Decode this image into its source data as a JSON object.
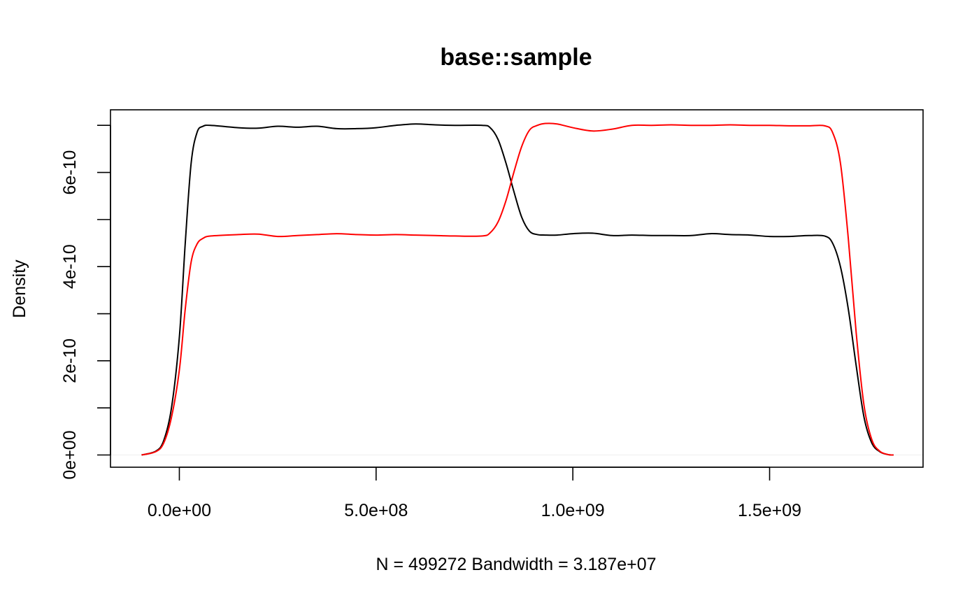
{
  "chart_data": {
    "type": "line",
    "title": "base::sample",
    "xlabel": "N = 499272   Bandwidth = 3.187e+07",
    "ylabel": "Density",
    "xlim": [
      -175000000,
      1890000000
    ],
    "ylim": [
      -2.6e-11,
      7.33e-10
    ],
    "x_ticks": [
      {
        "value": 0,
        "label": "0.0e+00"
      },
      {
        "value": 500000000,
        "label": "5.0e+08"
      },
      {
        "value": 1000000000,
        "label": "1.0e+09"
      },
      {
        "value": 1500000000,
        "label": "1.5e+09"
      }
    ],
    "y_ticks": [
      {
        "value": 0,
        "label": "0e+00"
      },
      {
        "value": 1e-10,
        "label": ""
      },
      {
        "value": 2e-10,
        "label": "2e-10"
      },
      {
        "value": 3e-10,
        "label": ""
      },
      {
        "value": 4e-10,
        "label": "4e-10"
      },
      {
        "value": 5e-10,
        "label": ""
      },
      {
        "value": 6e-10,
        "label": "6e-10"
      },
      {
        "value": 7e-10,
        "label": ""
      }
    ],
    "grid": false,
    "series": [
      {
        "color": "#000000",
        "x": [
          -96000000,
          -60000000,
          -40000000,
          -20000000,
          0,
          15000000,
          30000000,
          45000000,
          60000000,
          80000000,
          150000000,
          200000000,
          250000000,
          300000000,
          350000000,
          400000000,
          450000000,
          500000000,
          550000000,
          600000000,
          650000000,
          700000000,
          770000000,
          790000000,
          810000000,
          830000000,
          850000000,
          870000000,
          890000000,
          910000000,
          930000000,
          960000000,
          1000000000,
          1050000000,
          1100000000,
          1150000000,
          1200000000,
          1250000000,
          1300000000,
          1350000000,
          1400000000,
          1450000000,
          1500000000,
          1550000000,
          1600000000,
          1640000000,
          1660000000,
          1680000000,
          1700000000,
          1720000000,
          1740000000,
          1760000000,
          1780000000,
          1800000000,
          1815000000
        ],
        "y": [
          0,
          8e-12,
          3e-11,
          1e-10,
          2.5e-10,
          4.5e-10,
          6.2e-10,
          6.85e-10,
          6.98e-10,
          7e-10,
          6.95e-10,
          6.94e-10,
          6.98e-10,
          6.96e-10,
          6.98e-10,
          6.93e-10,
          6.93e-10,
          6.95e-10,
          7e-10,
          7.03e-10,
          7.01e-10,
          7e-10,
          7e-10,
          6.95e-10,
          6.7e-10,
          6.2e-10,
          5.6e-10,
          5.05e-10,
          4.75e-10,
          4.68e-10,
          4.67e-10,
          4.67e-10,
          4.7e-10,
          4.71e-10,
          4.66e-10,
          4.67e-10,
          4.66e-10,
          4.66e-10,
          4.66e-10,
          4.7e-10,
          4.68e-10,
          4.67e-10,
          4.64e-10,
          4.64e-10,
          4.66e-10,
          4.65e-10,
          4.5e-10,
          4e-10,
          3.1e-10,
          1.9e-10,
          8e-11,
          2.5e-11,
          7e-12,
          1e-12,
          0
        ]
      },
      {
        "color": "#ff0000",
        "x": [
          -96000000,
          -60000000,
          -40000000,
          -20000000,
          0,
          15000000,
          30000000,
          45000000,
          60000000,
          80000000,
          150000000,
          200000000,
          250000000,
          300000000,
          350000000,
          400000000,
          450000000,
          500000000,
          550000000,
          600000000,
          650000000,
          700000000,
          770000000,
          790000000,
          810000000,
          830000000,
          850000000,
          870000000,
          890000000,
          910000000,
          930000000,
          960000000,
          1000000000,
          1050000000,
          1100000000,
          1150000000,
          1200000000,
          1250000000,
          1300000000,
          1350000000,
          1400000000,
          1450000000,
          1500000000,
          1550000000,
          1600000000,
          1640000000,
          1660000000,
          1680000000,
          1700000000,
          1720000000,
          1740000000,
          1760000000,
          1780000000,
          1800000000,
          1815000000
        ],
        "y": [
          0,
          7e-12,
          2.5e-11,
          8e-11,
          1.8e-10,
          3.1e-10,
          4.1e-10,
          4.48e-10,
          4.6e-10,
          4.65e-10,
          4.68e-10,
          4.69e-10,
          4.64e-10,
          4.66e-10,
          4.68e-10,
          4.7e-10,
          4.68e-10,
          4.67e-10,
          4.68e-10,
          4.67e-10,
          4.66e-10,
          4.65e-10,
          4.65e-10,
          4.72e-10,
          4.95e-10,
          5.4e-10,
          6e-10,
          6.55e-10,
          6.9e-10,
          7e-10,
          7.04e-10,
          7.03e-10,
          6.95e-10,
          6.88e-10,
          6.92e-10,
          7e-10,
          7e-10,
          7.01e-10,
          7e-10,
          7e-10,
          7.01e-10,
          7e-10,
          7e-10,
          6.99e-10,
          6.99e-10,
          6.99e-10,
          6.85e-10,
          6.2e-10,
          4.6e-10,
          2.6e-10,
          1.05e-10,
          3.2e-11,
          8e-12,
          1e-12,
          0
        ]
      }
    ]
  }
}
